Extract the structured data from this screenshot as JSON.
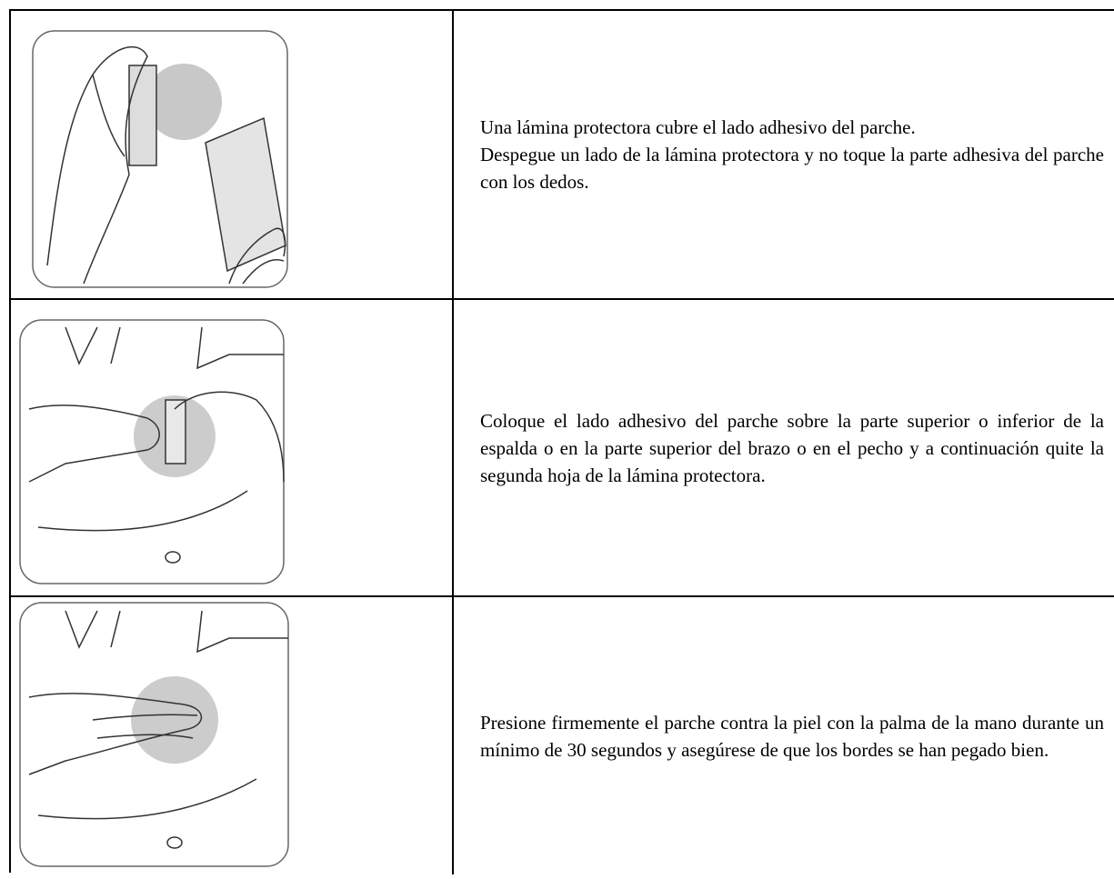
{
  "table": {
    "rows": [
      [
        "Una lámina protectora cubre el lado adhesivo del parche.",
        "Despegue un lado de la lámina protectora y no toque la parte adhesiva del parche con los dedos."
      ],
      [
        "Coloque el lado adhesivo del parche sobre la parte superior o inferior de la espalda o en la parte superior del brazo o en el pecho y a continuación quite la segunda hoja de la lámina protectora."
      ],
      [
        "Presione firmemente el parche contra la piel con la palma de la mano durante un mínimo de 30 segundos y asegúrese de que los bordes se han pegado bien."
      ]
    ]
  }
}
